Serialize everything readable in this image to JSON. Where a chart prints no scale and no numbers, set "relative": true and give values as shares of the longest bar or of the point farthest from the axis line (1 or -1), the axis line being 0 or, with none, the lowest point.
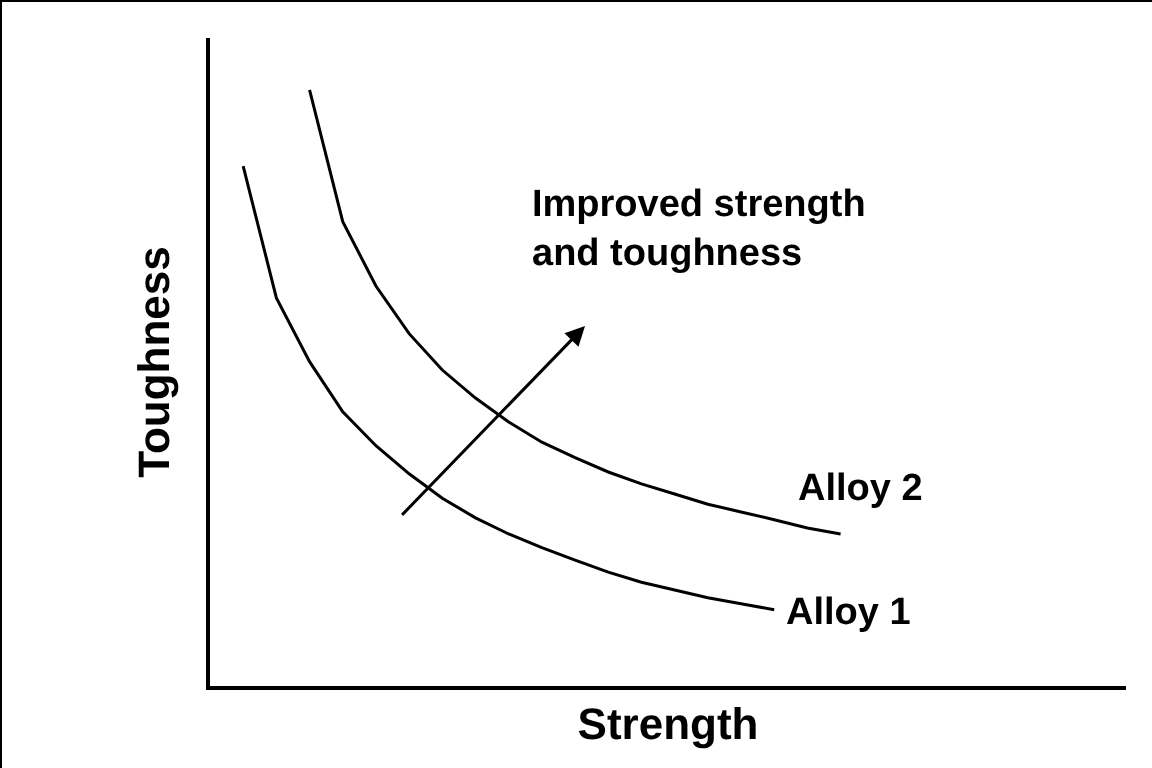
{
  "chart_data": {
    "type": "line",
    "relative": true,
    "xlabel": "Strength",
    "ylabel": "Toughness",
    "legend": false,
    "marker": "none",
    "line_style": "solid",
    "categories": [
      null,
      null,
      null,
      null,
      null,
      null,
      null,
      null,
      null,
      null,
      null,
      null,
      null,
      null,
      null,
      null,
      null,
      null,
      null
    ],
    "series": [
      {
        "name": "Alloy 1",
        "color": "#000000",
        "values": [
          0.872,
          0.651,
          0.544,
          0.46,
          0.403,
          0.356,
          0.315,
          0.282,
          0.255,
          0.232,
          0.211,
          0.191,
          0.174,
          0.161,
          0.148,
          0.138,
          0.128,
          null,
          null
        ]
      },
      {
        "name": "Alloy 2",
        "color": "#000000",
        "values": [
          null,
          null,
          1.0,
          0.779,
          0.671,
          0.591,
          0.53,
          0.483,
          0.443,
          0.409,
          0.383,
          0.359,
          0.339,
          0.322,
          0.305,
          0.292,
          0.279,
          0.265,
          0.255
        ]
      }
    ],
    "annotations": [
      "Improved strength\nand toughness"
    ]
  }
}
